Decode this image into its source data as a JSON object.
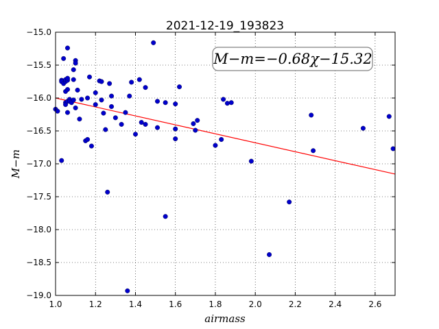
{
  "chart_data": {
    "type": "scatter",
    "title": "2021-12-19_193823",
    "xlabel": "airmass",
    "ylabel": "M−m",
    "xlim": [
      1.0,
      2.7
    ],
    "ylim": [
      -19.0,
      -15.0
    ],
    "y_inverted": true,
    "grid": true,
    "grid_style": "dotted",
    "x_ticks": [
      "1.0",
      "1.2",
      "1.4",
      "1.6",
      "1.8",
      "2.0",
      "2.2",
      "2.4",
      "2.6"
    ],
    "y_ticks": [
      "−15.0",
      "−15.5",
      "−16.0",
      "−16.5",
      "−17.0",
      "−17.5",
      "−18.0",
      "−18.5",
      "−19.0"
    ],
    "annotation": "M−m=−0.68χ−15.32",
    "fit_line": {
      "slope": -0.68,
      "intercept": -15.32,
      "color": "#ff0000"
    },
    "point_color": "#0000cc",
    "points": [
      [
        1.0,
        -16.17
      ],
      [
        1.01,
        -16.2
      ],
      [
        1.03,
        -15.73
      ],
      [
        1.03,
        -15.75
      ],
      [
        1.03,
        -16.95
      ],
      [
        1.04,
        -15.78
      ],
      [
        1.04,
        -15.4
      ],
      [
        1.05,
        -15.75
      ],
      [
        1.05,
        -15.72
      ],
      [
        1.05,
        -16.07
      ],
      [
        1.05,
        -16.1
      ],
      [
        1.05,
        -15.9
      ],
      [
        1.06,
        -15.24
      ],
      [
        1.06,
        -15.73
      ],
      [
        1.06,
        -15.7
      ],
      [
        1.06,
        -16.05
      ],
      [
        1.06,
        -15.87
      ],
      [
        1.06,
        -16.22
      ],
      [
        1.07,
        -16.02
      ],
      [
        1.07,
        -16.05
      ],
      [
        1.08,
        -16.07
      ],
      [
        1.09,
        -15.72
      ],
      [
        1.09,
        -15.57
      ],
      [
        1.09,
        -16.03
      ],
      [
        1.1,
        -16.15
      ],
      [
        1.1,
        -15.43
      ],
      [
        1.1,
        -15.47
      ],
      [
        1.11,
        -15.88
      ],
      [
        1.12,
        -16.32
      ],
      [
        1.13,
        -16.02
      ],
      [
        1.15,
        -16.65
      ],
      [
        1.16,
        -16.63
      ],
      [
        1.16,
        -16.0
      ],
      [
        1.17,
        -15.68
      ],
      [
        1.18,
        -16.73
      ],
      [
        1.2,
        -15.92
      ],
      [
        1.2,
        -16.1
      ],
      [
        1.22,
        -15.74
      ],
      [
        1.23,
        -16.03
      ],
      [
        1.23,
        -15.75
      ],
      [
        1.24,
        -16.23
      ],
      [
        1.25,
        -16.48
      ],
      [
        1.26,
        -17.43
      ],
      [
        1.27,
        -15.78
      ],
      [
        1.28,
        -15.97
      ],
      [
        1.28,
        -16.13
      ],
      [
        1.3,
        -16.3
      ],
      [
        1.33,
        -16.4
      ],
      [
        1.35,
        -16.22
      ],
      [
        1.36,
        -18.93
      ],
      [
        1.37,
        -15.97
      ],
      [
        1.38,
        -15.76
      ],
      [
        1.4,
        -16.55
      ],
      [
        1.42,
        -15.72
      ],
      [
        1.43,
        -16.37
      ],
      [
        1.45,
        -16.4
      ],
      [
        1.45,
        -15.84
      ],
      [
        1.49,
        -15.16
      ],
      [
        1.51,
        -16.45
      ],
      [
        1.51,
        -16.05
      ],
      [
        1.55,
        -17.8
      ],
      [
        1.55,
        -16.07
      ],
      [
        1.6,
        -16.09
      ],
      [
        1.6,
        -16.47
      ],
      [
        1.6,
        -16.62
      ],
      [
        1.62,
        -15.83
      ],
      [
        1.69,
        -16.39
      ],
      [
        1.7,
        -16.49
      ],
      [
        1.71,
        -16.34
      ],
      [
        1.8,
        -16.72
      ],
      [
        1.83,
        -16.63
      ],
      [
        1.84,
        -16.02
      ],
      [
        1.86,
        -16.08
      ],
      [
        1.88,
        -16.07
      ],
      [
        1.98,
        -16.96
      ],
      [
        2.07,
        -18.38
      ],
      [
        2.17,
        -17.58
      ],
      [
        2.28,
        -16.26
      ],
      [
        2.29,
        -16.8
      ],
      [
        2.54,
        -16.46
      ],
      [
        2.67,
        -16.28
      ],
      [
        2.69,
        -16.77
      ]
    ]
  }
}
